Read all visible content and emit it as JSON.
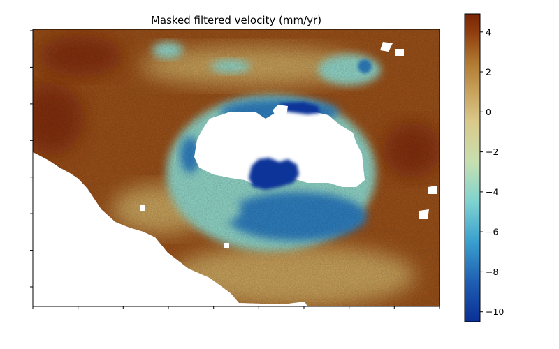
{
  "chart_data": {
    "type": "heatmap",
    "title": "Masked filtered velocity (mm/yr)",
    "xlabel": "",
    "ylabel": "",
    "x_ticks_count": 10,
    "y_ticks_count": 8,
    "x_tick_labels": [],
    "y_tick_labels": [],
    "grid": false,
    "masked_color": "#ffffff",
    "colorbar": {
      "label": "",
      "range": [
        -10.5,
        4.9
      ],
      "ticks": [
        4,
        2,
        0,
        -2,
        -4,
        -6,
        -8,
        -10
      ],
      "tick_labels": [
        "4",
        "2",
        "0",
        "−2",
        "−4",
        "−6",
        "−8",
        "−10"
      ],
      "colormap": [
        {
          "value": -10.5,
          "color": "#0a2f96"
        },
        {
          "value": -8.5,
          "color": "#1f5fb2"
        },
        {
          "value": -6.5,
          "color": "#3a9fce"
        },
        {
          "value": -4.5,
          "color": "#7ed3d0"
        },
        {
          "value": -2.5,
          "color": "#c8dfb0"
        },
        {
          "value": -0.5,
          "color": "#d9c98a"
        },
        {
          "value": 1.0,
          "color": "#c8a25c"
        },
        {
          "value": 2.5,
          "color": "#b07830"
        },
        {
          "value": 4.0,
          "color": "#8f3c0e"
        },
        {
          "value": 4.9,
          "color": "#7a2505"
        }
      ]
    },
    "regions": {
      "upper_plateau_mm_yr": 3.5,
      "far_left_edge_mm_yr": 4.5,
      "lower_flank_mm_yr": 1.0,
      "outer_ring_mm_yr": -4.0,
      "inner_ring_mm_yr": -7.5,
      "deep_core_mm_yr": -10.3
    }
  }
}
